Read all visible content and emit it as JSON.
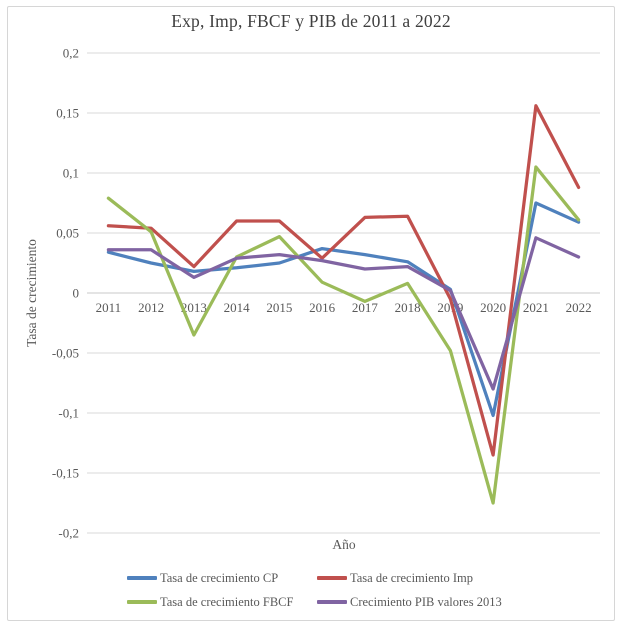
{
  "chart_data": {
    "type": "line",
    "title": "Exp, Imp, FBCF y PIB de 2011 a 2022",
    "xlabel": "Año",
    "ylabel": "Tasa de crecimiento",
    "ylim": [
      -0.2,
      0.2
    ],
    "ytick_step": 0.05,
    "ytick_labels": [
      "0,2",
      "0,15",
      "0,1",
      "0,05",
      "0",
      "-0,05",
      "-0,1",
      "-0,15",
      "-0,2"
    ],
    "grid": true,
    "legend_position": "bottom",
    "categories": [
      "2011",
      "2012",
      "2013",
      "2014",
      "2015",
      "2016",
      "2017",
      "2018",
      "2019",
      "2020",
      "2021",
      "2022"
    ],
    "series": [
      {
        "name": "Tasa de crecimiento CP",
        "color": "#4F81BD",
        "values": [
          0.034,
          0.025,
          0.018,
          0.021,
          0.025,
          0.037,
          0.032,
          0.026,
          0.003,
          -0.102,
          0.075,
          0.059
        ]
      },
      {
        "name": "Tasa de crecimiento Imp",
        "color": "#C0504D",
        "values": [
          0.056,
          0.054,
          0.022,
          0.06,
          0.06,
          0.029,
          0.063,
          0.064,
          -0.005,
          -0.135,
          0.156,
          0.088
        ]
      },
      {
        "name": "Tasa de crecimiento FBCF",
        "color": "#9BBB59",
        "values": [
          0.079,
          0.051,
          -0.035,
          0.03,
          0.047,
          0.009,
          -0.007,
          0.008,
          -0.048,
          -0.175,
          0.105,
          0.061
        ]
      },
      {
        "name": "Crecimiento PIB valores 2013",
        "color": "#8064A2",
        "values": [
          0.036,
          0.036,
          0.013,
          0.029,
          0.032,
          0.027,
          0.02,
          0.022,
          0.002,
          -0.08,
          0.046,
          0.03
        ]
      }
    ],
    "colors": {
      "gridline": "#D9D9D9",
      "zero_line": "#C9C9C9",
      "tick_text": "#595959",
      "title_text": "#3F3F3F",
      "frame_border": "#D6D6D6"
    }
  }
}
